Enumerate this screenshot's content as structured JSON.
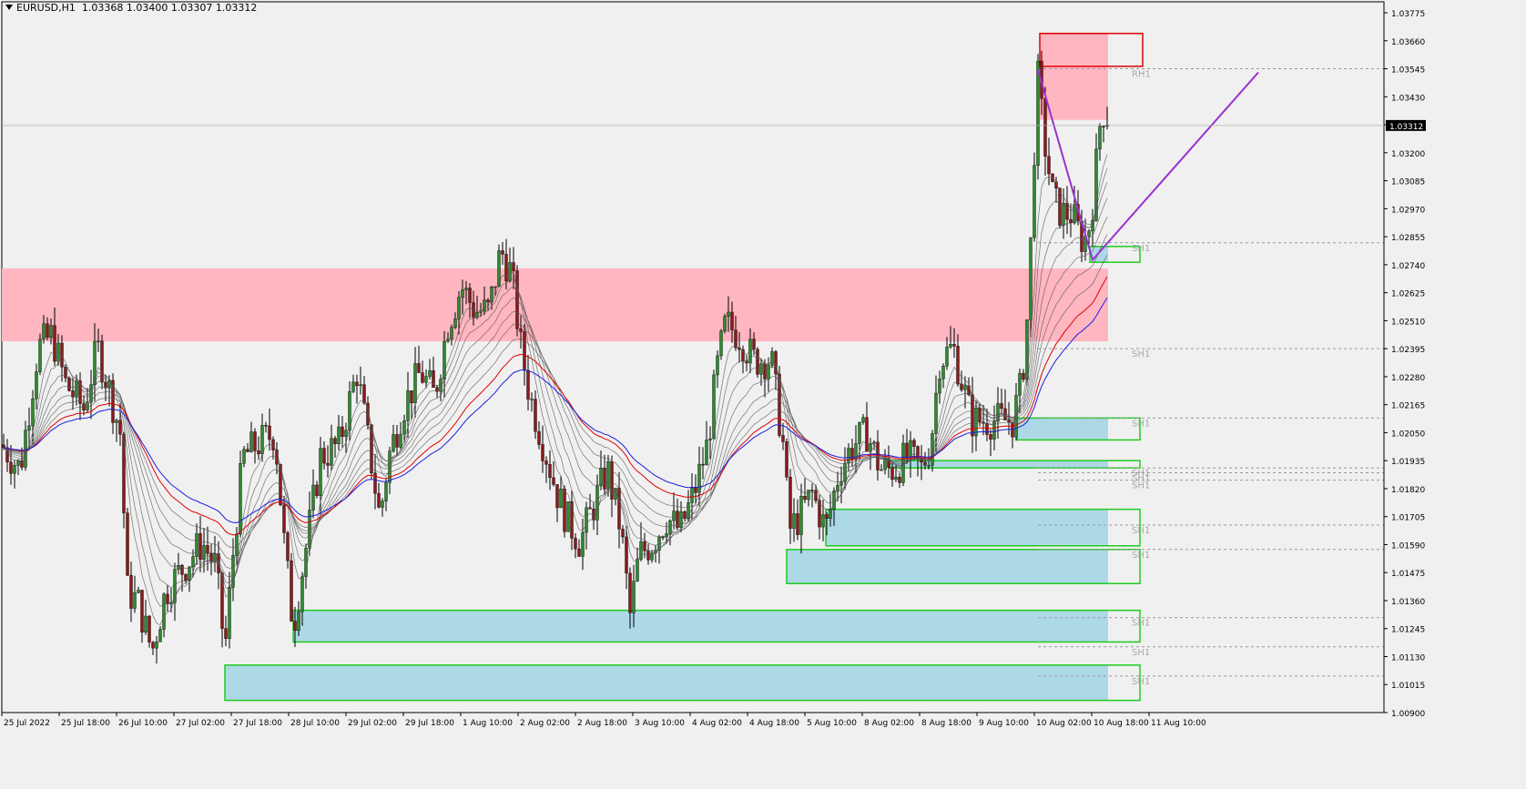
{
  "header": {
    "symbol": "EURUSD,H1",
    "ohlc": "1.03368 1.03400 1.03307 1.03312"
  },
  "current_price_label": "1.03312",
  "colors": {
    "background": "#f0f0f0",
    "bull_candle": "#2e8b2e",
    "bear_candle": "#8b1a1a",
    "supply_zone": "#ffb6c1",
    "demand_zone": "#add8e6",
    "zone_border_green": "#1fcc1f",
    "zone_border_red": "#e00000",
    "ma_red": "#e00000",
    "ma_blue": "#1e1ee0",
    "ma_gray": "#555555",
    "projection_line": "#9b30d0"
  },
  "chart_data": {
    "type": "candlestick",
    "symbol": "EURUSD",
    "timeframe": "H1",
    "ylim": [
      1.009,
      1.0382
    ],
    "y_ticks": [
      "1.03775",
      "1.03660",
      "1.03545",
      "1.03430",
      "1.03315",
      "1.03200",
      "1.03085",
      "1.02970",
      "1.02855",
      "1.02740",
      "1.02625",
      "1.02510",
      "1.02395",
      "1.02280",
      "1.02165",
      "1.02050",
      "1.01935",
      "1.01820",
      "1.01705",
      "1.01590",
      "1.01475",
      "1.01360",
      "1.01245",
      "1.01130",
      "1.01015",
      "1.00900"
    ],
    "x_ticks": [
      "25 Jul 2022",
      "25 Jul 18:00",
      "26 Jul 10:00",
      "27 Jul 02:00",
      "27 Jul 18:00",
      "28 Jul 10:00",
      "29 Jul 02:00",
      "29 Jul 18:00",
      "1 Aug 10:00",
      "2 Aug 02:00",
      "2 Aug 18:00",
      "3 Aug 10:00",
      "4 Aug 02:00",
      "4 Aug 18:00",
      "5 Aug 10:00",
      "8 Aug 02:00",
      "8 Aug 18:00",
      "9 Aug 10:00",
      "10 Aug 02:00",
      "10 Aug 18:00",
      "11 Aug 10:00"
    ],
    "price_path": [
      [
        0,
        1.02
      ],
      [
        20,
        1.019
      ],
      [
        40,
        1.024
      ],
      [
        55,
        1.0245
      ],
      [
        70,
        1.0225
      ],
      [
        90,
        1.0215
      ],
      [
        105,
        1.024
      ],
      [
        120,
        1.022
      ],
      [
        130,
        1.0205
      ],
      [
        138,
        1.014
      ],
      [
        150,
        1.0135
      ],
      [
        165,
        1.0115
      ],
      [
        180,
        1.014
      ],
      [
        200,
        1.015
      ],
      [
        220,
        1.016
      ],
      [
        235,
        1.015
      ],
      [
        245,
        1.0115
      ],
      [
        255,
        1.016
      ],
      [
        265,
        1.0195
      ],
      [
        280,
        1.02
      ],
      [
        300,
        1.0205
      ],
      [
        310,
        1.016
      ],
      [
        320,
        1.0125
      ],
      [
        335,
        1.016
      ],
      [
        350,
        1.0195
      ],
      [
        370,
        1.02
      ],
      [
        390,
        1.023
      ],
      [
        405,
        1.0195
      ],
      [
        415,
        1.017
      ],
      [
        425,
        1.0195
      ],
      [
        440,
        1.0215
      ],
      [
        460,
        1.023
      ],
      [
        475,
        1.022
      ],
      [
        490,
        1.025
      ],
      [
        505,
        1.0265
      ],
      [
        520,
        1.0255
      ],
      [
        535,
        1.0255
      ],
      [
        548,
        1.028
      ],
      [
        560,
        1.027
      ],
      [
        570,
        1.024
      ],
      [
        580,
        1.022
      ],
      [
        595,
        1.02
      ],
      [
        610,
        1.018
      ],
      [
        620,
        1.017
      ],
      [
        635,
        1.016
      ],
      [
        650,
        1.0175
      ],
      [
        665,
        1.019
      ],
      [
        680,
        1.0165
      ],
      [
        690,
        1.013
      ],
      [
        700,
        1.0155
      ],
      [
        715,
        1.016
      ],
      [
        730,
        1.017
      ],
      [
        745,
        1.0165
      ],
      [
        760,
        1.018
      ],
      [
        775,
        1.02
      ],
      [
        785,
        1.023
      ],
      [
        795,
        1.025
      ],
      [
        810,
        1.0245
      ],
      [
        825,
        1.0235
      ],
      [
        845,
        1.0235
      ],
      [
        858,
        1.02
      ],
      [
        865,
        1.0165
      ],
      [
        875,
        1.017
      ],
      [
        890,
        1.018
      ],
      [
        905,
        1.0165
      ],
      [
        920,
        1.019
      ],
      [
        935,
        1.02
      ],
      [
        950,
        1.0205
      ],
      [
        965,
        1.019
      ],
      [
        980,
        1.019
      ],
      [
        995,
        1.0195
      ],
      [
        1010,
        1.019
      ],
      [
        1020,
        1.02
      ],
      [
        1030,
        1.0235
      ],
      [
        1045,
        1.024
      ],
      [
        1055,
        1.0225
      ],
      [
        1065,
        1.021
      ],
      [
        1080,
        1.021
      ],
      [
        1095,
        1.021
      ],
      [
        1110,
        1.021
      ],
      [
        1120,
        1.0225
      ],
      [
        1128,
        1.026
      ],
      [
        1133,
        1.0315
      ],
      [
        1138,
        1.035
      ],
      [
        1145,
        1.0325
      ],
      [
        1155,
        1.03
      ],
      [
        1165,
        1.0295
      ],
      [
        1175,
        1.0295
      ],
      [
        1185,
        1.0285
      ],
      [
        1192,
        1.0285
      ],
      [
        1200,
        1.0305
      ],
      [
        1205,
        1.033
      ],
      [
        1212,
        1.034
      ],
      [
        1216,
        1.0331
      ]
    ],
    "supply_zones": [
      {
        "from_index": 0,
        "to_index": 1215,
        "top": 1.02725,
        "bottom": 1.02425
      },
      {
        "from_index": 1140,
        "to_index": 1215,
        "top": 1.0369,
        "bottom": 1.03335
      }
    ],
    "demand_zones": [
      {
        "from_index": 1195,
        "to_index": 1215,
        "top": 1.02815,
        "bottom": 1.0275
      },
      {
        "from_index": 1115,
        "to_index": 1215,
        "top": 1.0211,
        "bottom": 1.0202
      },
      {
        "from_index": 975,
        "to_index": 1215,
        "top": 1.01935,
        "bottom": 1.01905
      },
      {
        "from_index": 905,
        "to_index": 1215,
        "top": 1.01735,
        "bottom": 1.01585
      },
      {
        "from_index": 862,
        "to_index": 1215,
        "top": 1.0157,
        "bottom": 1.0143
      },
      {
        "from_index": 320,
        "to_index": 1215,
        "top": 1.0132,
        "bottom": 1.0119
      },
      {
        "from_index": 245,
        "to_index": 1215,
        "top": 1.01095,
        "bottom": 1.0095
      }
    ],
    "level_labels": [
      {
        "text": "RH1",
        "price": 1.03545
      },
      {
        "text": "SH1",
        "price": 1.0283
      },
      {
        "text": "SH1",
        "price": 1.02395
      },
      {
        "text": "SH1",
        "price": 1.0211
      },
      {
        "text": "SH1",
        "price": 1.01905
      },
      {
        "text": "SH1",
        "price": 1.01885
      },
      {
        "text": "SH1",
        "price": 1.01855
      },
      {
        "text": "SH1",
        "price": 1.0167
      },
      {
        "text": "SH1",
        "price": 1.0157
      },
      {
        "text": "SH1",
        "price": 1.0129
      },
      {
        "text": "SH1",
        "price": 1.0117
      },
      {
        "text": "SH1",
        "price": 1.0105
      }
    ],
    "projection_line": [
      [
        1138,
        1.0354
      ],
      [
        1198,
        1.0276
      ],
      [
        1380,
        1.0353
      ]
    ]
  }
}
